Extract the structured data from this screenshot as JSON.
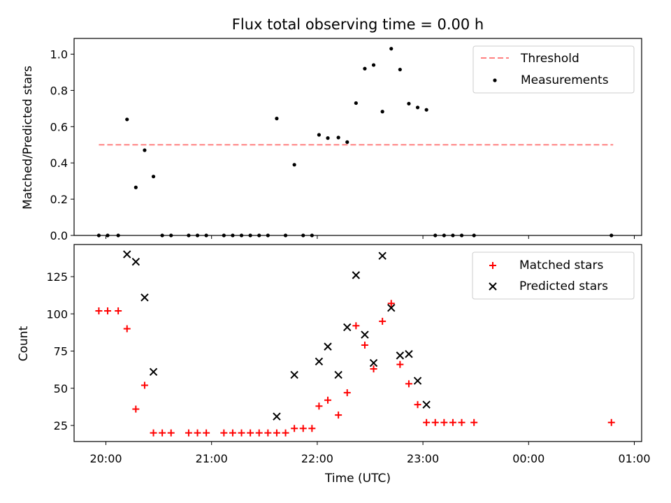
{
  "chart_data": [
    {
      "type": "scatter",
      "title": "Flux total observing time = 0.00 h",
      "ylabel": "Matched/Predicted stars",
      "xlabel": "",
      "ylim": [
        0,
        1.08
      ],
      "yticks": [
        "0.0",
        "0.2",
        "0.4",
        "0.6",
        "0.8",
        "1.0"
      ],
      "grid": false,
      "legend_position": "top-right",
      "threshold": {
        "name": "Threshold",
        "value": 0.5,
        "x_start": "19:56",
        "x_end": "00:48",
        "color": "#ff8080",
        "style": "dashed"
      },
      "series": [
        {
          "name": "Measurements",
          "color": "#000000",
          "marker": "dot",
          "points": [
            [
              "19:56",
              0
            ],
            [
              "20:01",
              0
            ],
            [
              "20:07",
              0
            ],
            [
              "20:12",
              0.64
            ],
            [
              "20:17",
              0.265
            ],
            [
              "20:22",
              0.47
            ],
            [
              "20:27",
              0.325
            ],
            [
              "20:32",
              0
            ],
            [
              "20:37",
              0
            ],
            [
              "20:47",
              0
            ],
            [
              "20:52",
              0
            ],
            [
              "20:57",
              0
            ],
            [
              "21:07",
              0
            ],
            [
              "21:12",
              0
            ],
            [
              "21:17",
              0
            ],
            [
              "21:22",
              0
            ],
            [
              "21:27",
              0
            ],
            [
              "21:32",
              0
            ],
            [
              "21:37",
              0.645
            ],
            [
              "21:42",
              0
            ],
            [
              "21:47",
              0.39
            ],
            [
              "21:52",
              0
            ],
            [
              "21:57",
              0
            ],
            [
              "22:01",
              0.555
            ],
            [
              "22:06",
              0.537
            ],
            [
              "22:12",
              0.54
            ],
            [
              "22:17",
              0.515
            ],
            [
              "22:22",
              0.73
            ],
            [
              "22:27",
              0.92
            ],
            [
              "22:32",
              0.94
            ],
            [
              "22:37",
              0.683
            ],
            [
              "22:42",
              1.03
            ],
            [
              "22:47",
              0.915
            ],
            [
              "22:52",
              0.727
            ],
            [
              "22:57",
              0.706
            ],
            [
              "23:02",
              0.693
            ],
            [
              "23:07",
              0
            ],
            [
              "23:12",
              0
            ],
            [
              "23:17",
              0
            ],
            [
              "23:22",
              0
            ],
            [
              "23:29",
              0
            ],
            [
              "00:47",
              0
            ]
          ]
        }
      ]
    },
    {
      "type": "scatter",
      "title": "",
      "ylabel": "Count",
      "xlabel": "Time (UTC)",
      "ylim": [
        13,
        147
      ],
      "yticks": [
        "25",
        "50",
        "75",
        "100",
        "125"
      ],
      "xticks": [
        "20:00",
        "21:00",
        "22:00",
        "23:00",
        "00:00",
        "01:00"
      ],
      "grid": false,
      "legend_position": "top-right",
      "series": [
        {
          "name": "Matched stars",
          "color": "#ff0000",
          "marker": "plus",
          "points": [
            [
              "19:56",
              102
            ],
            [
              "20:01",
              102
            ],
            [
              "20:07",
              102
            ],
            [
              "20:12",
              90
            ],
            [
              "20:17",
              36
            ],
            [
              "20:22",
              52
            ],
            [
              "20:27",
              20
            ],
            [
              "20:32",
              20
            ],
            [
              "20:37",
              20
            ],
            [
              "20:47",
              20
            ],
            [
              "20:52",
              20
            ],
            [
              "20:57",
              20
            ],
            [
              "21:07",
              20
            ],
            [
              "21:12",
              20
            ],
            [
              "21:17",
              20
            ],
            [
              "21:22",
              20
            ],
            [
              "21:27",
              20
            ],
            [
              "21:32",
              20
            ],
            [
              "21:37",
              20
            ],
            [
              "21:42",
              20
            ],
            [
              "21:47",
              23
            ],
            [
              "21:52",
              23
            ],
            [
              "21:57",
              23
            ],
            [
              "22:01",
              38
            ],
            [
              "22:06",
              42
            ],
            [
              "22:12",
              32
            ],
            [
              "22:17",
              47
            ],
            [
              "22:22",
              92
            ],
            [
              "22:27",
              79
            ],
            [
              "22:32",
              63
            ],
            [
              "22:37",
              95
            ],
            [
              "22:42",
              107
            ],
            [
              "22:47",
              66
            ],
            [
              "22:52",
              53
            ],
            [
              "22:57",
              39
            ],
            [
              "23:02",
              27
            ],
            [
              "23:07",
              27
            ],
            [
              "23:12",
              27
            ],
            [
              "23:17",
              27
            ],
            [
              "23:22",
              27
            ],
            [
              "23:29",
              27
            ],
            [
              "00:47",
              27
            ]
          ]
        },
        {
          "name": "Predicted stars",
          "color": "#000000",
          "marker": "x",
          "points": [
            [
              "20:12",
              140
            ],
            [
              "20:17",
              135
            ],
            [
              "20:22",
              111
            ],
            [
              "20:27",
              61
            ],
            [
              "21:37",
              31
            ],
            [
              "21:47",
              59
            ],
            [
              "22:01",
              68
            ],
            [
              "22:06",
              78
            ],
            [
              "22:12",
              59
            ],
            [
              "22:17",
              91
            ],
            [
              "22:22",
              126
            ],
            [
              "22:27",
              86
            ],
            [
              "22:32",
              67
            ],
            [
              "22:37",
              139
            ],
            [
              "22:42",
              104
            ],
            [
              "22:47",
              72
            ],
            [
              "22:52",
              73
            ],
            [
              "22:57",
              55
            ],
            [
              "23:02",
              39
            ]
          ]
        }
      ]
    }
  ]
}
